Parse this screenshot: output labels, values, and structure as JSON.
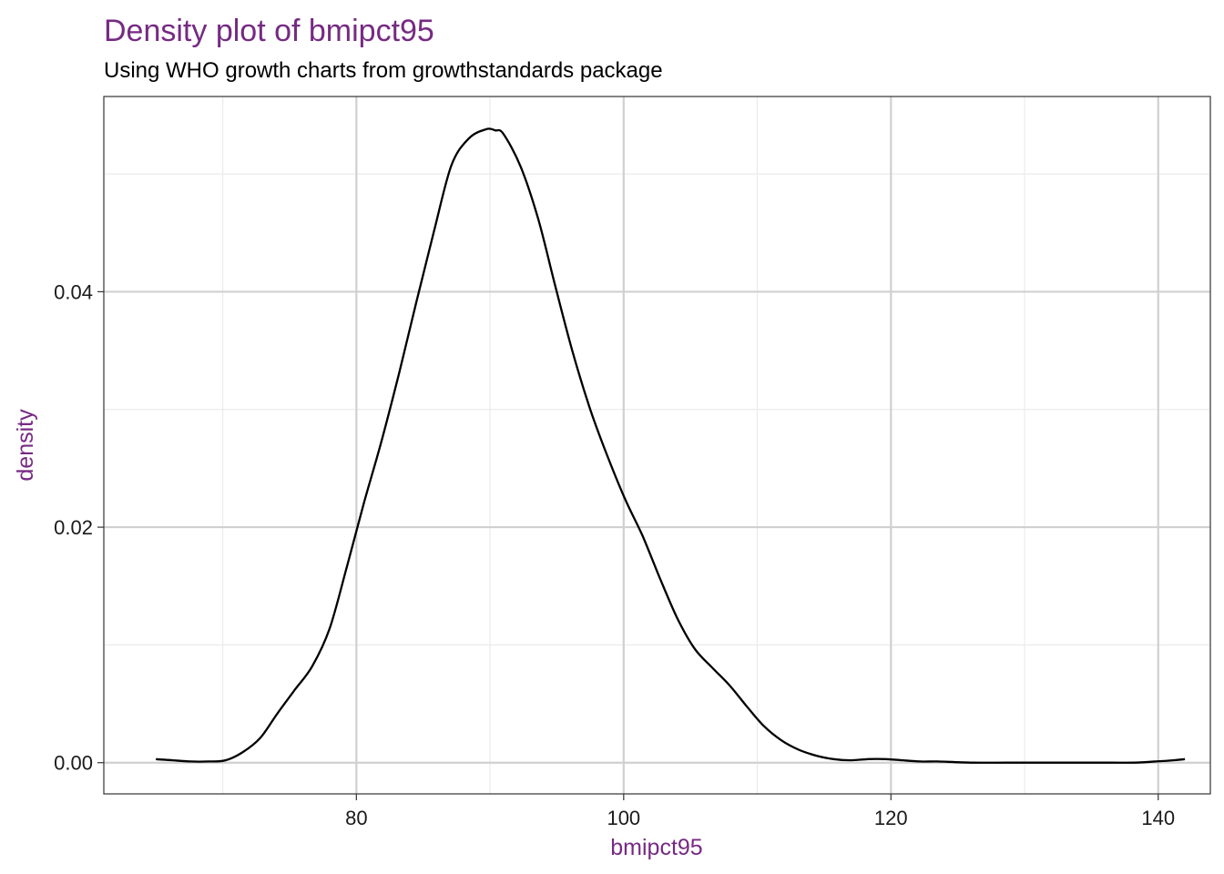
{
  "chart_data": {
    "type": "area",
    "title": "Density plot of bmipct95",
    "subtitle": "Using WHO growth charts from growthstandards package",
    "xlabel": "bmipct95",
    "ylabel": "density",
    "xlim": [
      61.1,
      143.9
    ],
    "ylim": [
      -0.00265,
      0.05658
    ],
    "x_ticks": [
      80,
      100,
      120,
      140
    ],
    "y_ticks": [
      0.0,
      0.02,
      0.04
    ],
    "x_tick_labels": [
      "80",
      "100",
      "120",
      "140"
    ],
    "y_tick_labels": [
      "0.00",
      "0.02",
      "0.04"
    ],
    "x_minor_ticks": [
      70,
      90,
      110,
      130
    ],
    "y_minor_ticks": [
      0.01,
      0.03,
      0.05
    ],
    "grid": true,
    "series": [
      {
        "x": [
          65.0,
          66.3,
          67.6,
          68.9,
          70.2,
          71.5,
          72.8,
          74.1,
          75.4,
          76.7,
          78.0,
          79.3,
          80.6,
          81.9,
          83.2,
          84.5,
          85.8,
          87.1,
          88.4,
          89.7,
          90.4,
          91.0,
          92.3,
          93.6,
          94.9,
          96.2,
          97.5,
          98.8,
          100.1,
          101.4,
          102.7,
          104.0,
          105.3,
          106.6,
          107.9,
          109.2,
          110.5,
          111.8,
          113.1,
          114.4,
          115.7,
          117.0,
          118.3,
          119.6,
          120.9,
          122.2,
          123.5,
          126.1,
          128.7,
          131.3,
          133.9,
          136.5,
          138.2,
          139.8,
          141.1,
          142.0
        ],
        "y": [
          0.0003,
          0.0002,
          0.0001,
          0.0001,
          0.0002,
          0.0009,
          0.0021,
          0.0042,
          0.0062,
          0.0082,
          0.0114,
          0.0167,
          0.0222,
          0.0274,
          0.0331,
          0.0392,
          0.0451,
          0.0507,
          0.053,
          0.0538,
          0.0537,
          0.0534,
          0.0506,
          0.0462,
          0.0404,
          0.0348,
          0.03,
          0.026,
          0.0224,
          0.0193,
          0.0157,
          0.0123,
          0.0097,
          0.0081,
          0.0066,
          0.0048,
          0.0031,
          0.0019,
          0.0011,
          0.0006,
          0.0003,
          0.0002,
          0.0003,
          0.0003,
          0.0002,
          0.0001,
          0.0001,
          0.0,
          0.0,
          0.0,
          0.0,
          0.0,
          0.0,
          0.0001,
          0.0002,
          0.0003
        ]
      }
    ]
  },
  "colors": {
    "accent": "#762a83",
    "line": "#000000",
    "grid_major": "#d0d0d0",
    "grid_minor": "#ebebeb",
    "border": "#333333"
  }
}
